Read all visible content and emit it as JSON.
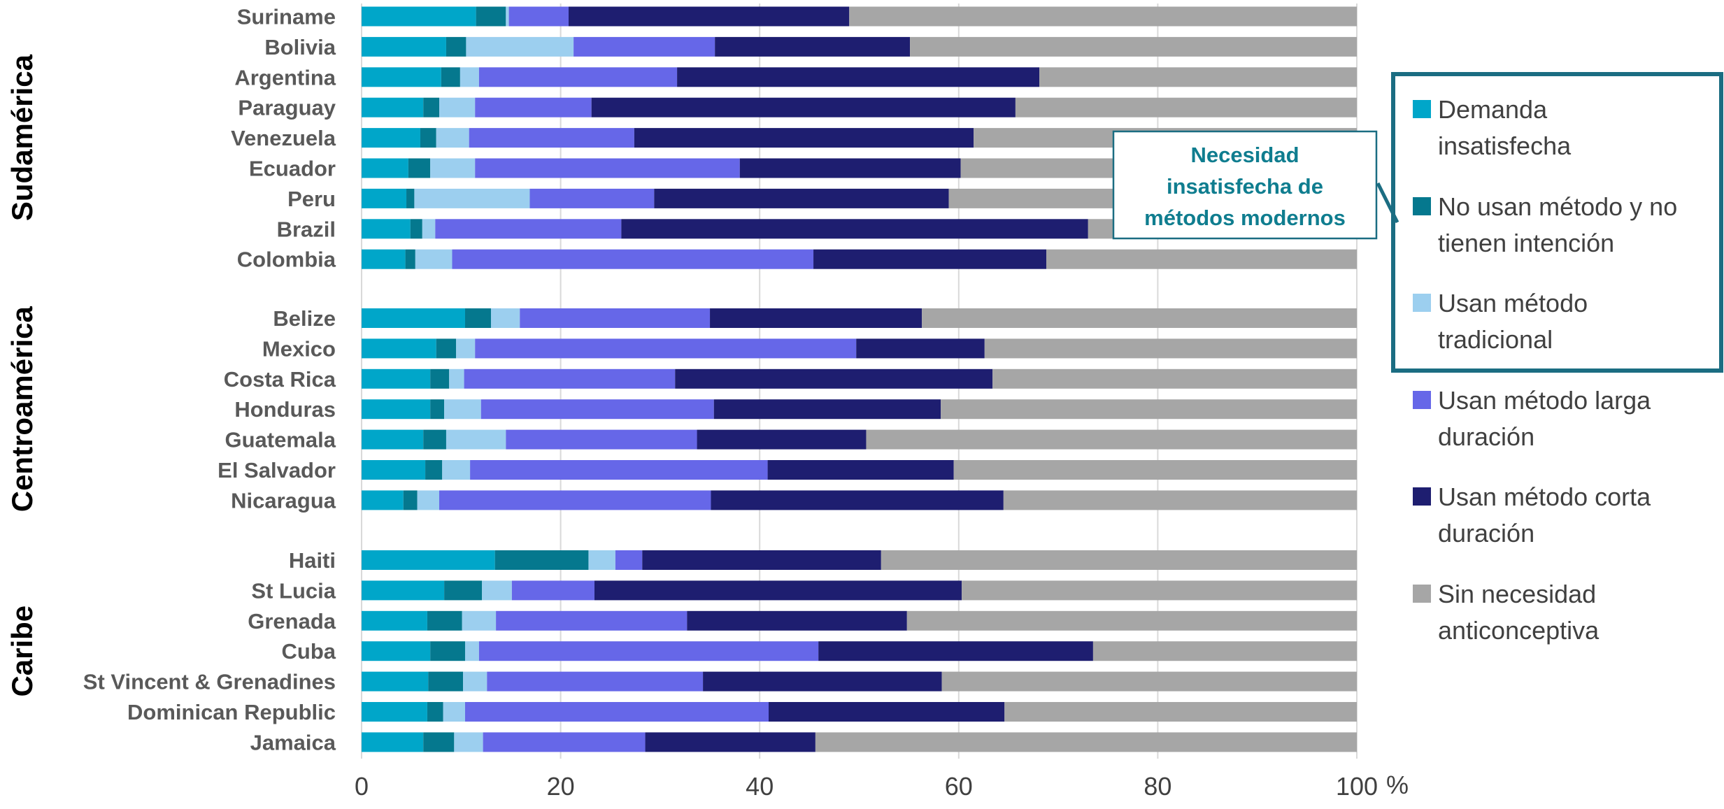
{
  "chart_data": {
    "type": "bar",
    "orientation": "horizontal",
    "stacked": true,
    "xlim": [
      0,
      100
    ],
    "xticks": [
      "0",
      "20",
      "40",
      "60",
      "80",
      "100"
    ],
    "xunit": "%",
    "grid": true,
    "legend_position": "right",
    "groups": [
      {
        "name": "Sudamérica",
        "categories": [
          "Suriname",
          "Bolivia",
          "Argentina",
          "Paraguay",
          "Venezuela",
          "Ecuador",
          "Peru",
          "Brazil",
          "Colombia"
        ]
      },
      {
        "name": "Centroamérica",
        "categories": [
          "Belize",
          "Mexico",
          "Costa Rica",
          "Honduras",
          "Guatemala",
          "El Salvador",
          "Nicaragua"
        ]
      },
      {
        "name": "Caribe",
        "categories": [
          "Haiti",
          "St Lucia",
          "Grenada",
          "Cuba",
          "St Vincent & Grenadines",
          "Dominican Republic",
          "Jamaica"
        ]
      }
    ],
    "categories": [
      "Suriname",
      "Bolivia",
      "Argentina",
      "Paraguay",
      "Venezuela",
      "Ecuador",
      "Peru",
      "Brazil",
      "Colombia",
      "Belize",
      "Mexico",
      "Costa Rica",
      "Honduras",
      "Guatemala",
      "El Salvador",
      "Nicaragua",
      "Haiti",
      "St Lucia",
      "Grenada",
      "Cuba",
      "St Vincent & Grenadines",
      "Dominican Republic",
      "Jamaica"
    ],
    "series": [
      {
        "name": "Demanda insatisfecha",
        "color": "#00a6c9",
        "values": [
          11.5,
          8.5,
          8.0,
          6.2,
          5.9,
          4.7,
          4.5,
          4.9,
          4.4,
          10.4,
          7.5,
          6.9,
          6.9,
          6.2,
          6.4,
          4.2,
          13.4,
          8.3,
          6.6,
          6.9,
          6.7,
          6.6,
          6.2
        ]
      },
      {
        "name": "No usan método y no tienen intención",
        "color": "#05788e",
        "values": [
          3.0,
          2.0,
          1.9,
          1.6,
          1.6,
          2.2,
          0.8,
          1.2,
          1.0,
          2.6,
          2.0,
          1.9,
          1.4,
          2.3,
          1.7,
          1.4,
          9.4,
          3.8,
          3.5,
          3.5,
          3.5,
          1.6,
          3.1
        ]
      },
      {
        "name": "Usan método tradicional",
        "color": "#9ccfef",
        "values": [
          0.3,
          10.8,
          1.9,
          3.6,
          3.3,
          4.5,
          11.6,
          1.3,
          3.7,
          2.9,
          1.9,
          1.5,
          3.7,
          6.0,
          2.8,
          2.2,
          2.7,
          3.0,
          3.4,
          1.4,
          2.4,
          2.2,
          2.9
        ]
      },
      {
        "name": "Usan método larga duración",
        "color": "#6667e8",
        "values": [
          6.0,
          14.2,
          19.9,
          11.7,
          16.6,
          26.6,
          12.5,
          18.7,
          36.3,
          19.1,
          38.3,
          21.2,
          23.4,
          19.2,
          29.9,
          27.3,
          2.7,
          8.3,
          19.2,
          34.1,
          21.7,
          30.5,
          16.3
        ]
      },
      {
        "name": "Usan método corta duración",
        "color": "#1e1e70",
        "values": [
          28.2,
          19.6,
          36.4,
          42.6,
          34.1,
          22.2,
          29.6,
          46.9,
          23.4,
          21.3,
          12.9,
          31.9,
          22.8,
          17.0,
          18.7,
          29.4,
          24.0,
          36.9,
          22.1,
          27.6,
          24.0,
          23.7,
          17.1
        ]
      },
      {
        "name": "Sin necesidad anticonceptiva",
        "color": "#a6a6a6",
        "values": [
          51.0,
          44.9,
          31.9,
          34.3,
          38.5,
          39.8,
          41.0,
          27.0,
          31.2,
          43.7,
          37.4,
          36.6,
          41.8,
          49.3,
          40.5,
          35.5,
          47.8,
          39.7,
          45.2,
          26.5,
          41.7,
          35.4,
          54.4
        ]
      }
    ],
    "callout": "Necesidad insatisfecha de métodos modernos",
    "callout_lines": [
      "Necesidad",
      "insatisfecha de",
      "métodos modernos"
    ],
    "legend_lines": [
      [
        "Demanda",
        "insatisfecha"
      ],
      [
        "No usan método y no",
        "tienen intención"
      ],
      [
        "Usan método",
        "tradicional"
      ],
      [
        "Usan método larga",
        "duración"
      ],
      [
        "Usan método corta",
        "duración"
      ],
      [
        "Sin necesidad",
        "anticonceptiva"
      ]
    ]
  }
}
